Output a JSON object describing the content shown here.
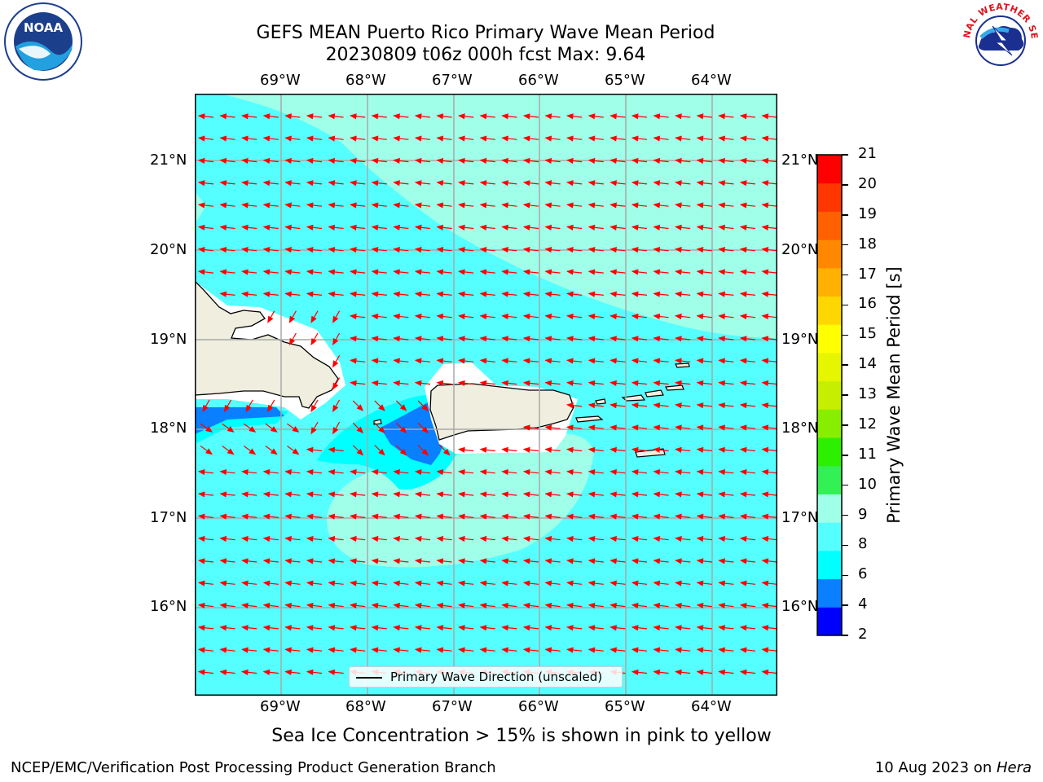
{
  "title": {
    "line1": "GEFS MEAN Puerto Rico Primary Wave Mean Period",
    "line2": "20230809 t06z 000h fcst   Max: 9.64"
  },
  "logos": {
    "left": "NOAA",
    "right": "NATIONAL WEATHER SERVICE"
  },
  "map": {
    "lon_ticks": [
      "69°W",
      "68°W",
      "67°W",
      "66°W",
      "65°W",
      "64°W"
    ],
    "lat_ticks": [
      "21°N",
      "20°N",
      "19°N",
      "18°N",
      "17°N",
      "16°N"
    ],
    "legend_label": "Primary Wave Direction (unscaled)",
    "arrow_color": "#ff0000"
  },
  "colorbar": {
    "label": "Primary Wave Mean Period [s]",
    "ticks": [
      "2",
      "4",
      "6",
      "8",
      "9",
      "10",
      "11",
      "12",
      "13",
      "14",
      "15",
      "16",
      "17",
      "18",
      "19",
      "20",
      "21"
    ],
    "colors": [
      "#0000ff",
      "#0a7fff",
      "#00ffff",
      "#55ffff",
      "#a0ffe8",
      "#33f055",
      "#2cf000",
      "#88ee00",
      "#c6ef00",
      "#e6f500",
      "#ffff00",
      "#ffd700",
      "#ffb000",
      "#ff8800",
      "#ff6000",
      "#ff3600",
      "#ff0000"
    ]
  },
  "subtitle": "Sea Ice Concentration > 15% is shown in pink to yellow",
  "footer": {
    "left": "NCEP/EMC/Verification Post Processing Product Generation Branch",
    "right_prefix": "10 Aug 2023 on ",
    "right_host": "Hera"
  }
}
